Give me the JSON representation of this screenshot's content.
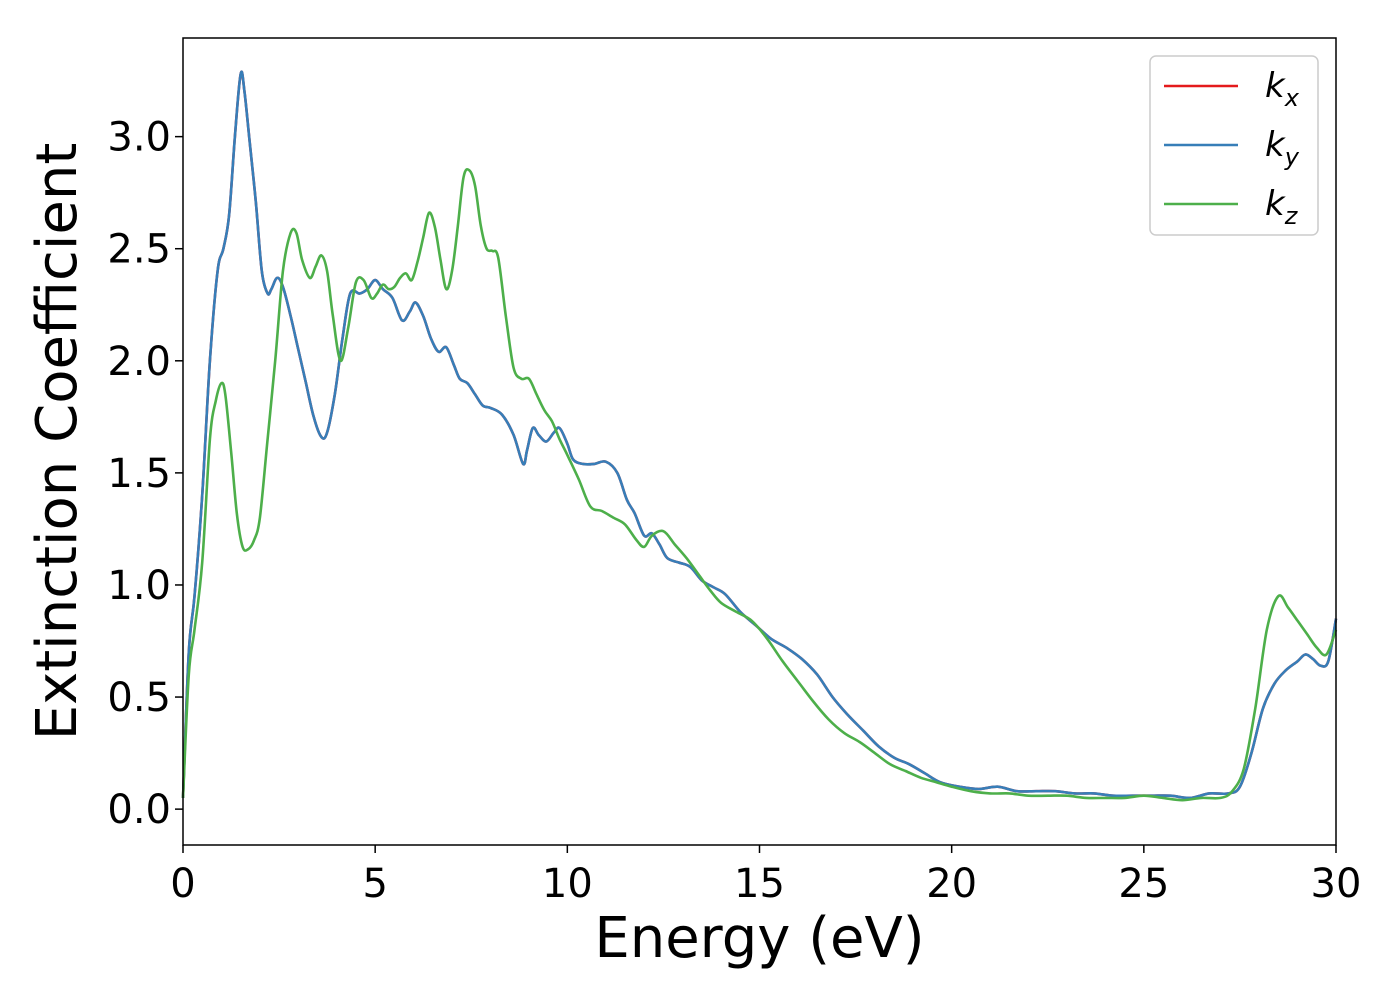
{
  "chart_data": {
    "type": "line",
    "xlabel": "Energy (eV)",
    "ylabel": "Extinction Coefficient",
    "xlim": [
      0,
      30
    ],
    "ylim": [
      -0.16,
      3.44
    ],
    "xticks": [
      0,
      5,
      10,
      15,
      20,
      25,
      30
    ],
    "yticks": [
      0.0,
      0.5,
      1.0,
      1.5,
      2.0,
      2.5,
      3.0
    ],
    "xtick_labels": [
      "0",
      "5",
      "10",
      "15",
      "20",
      "25",
      "30"
    ],
    "ytick_labels": [
      "0.0",
      "0.5",
      "1.0",
      "1.5",
      "2.0",
      "2.5",
      "3.0"
    ],
    "grid": false,
    "legend_position": "top-right",
    "series": [
      {
        "name": "k_x",
        "legend_base": "k",
        "legend_sub": "x",
        "color": "#e41a1c",
        "x": [
          0,
          0.15,
          0.3,
          0.5,
          0.7,
          0.9,
          1.05,
          1.2,
          1.35,
          1.5,
          1.6,
          1.75,
          1.9,
          2.05,
          2.2,
          2.3,
          2.45,
          2.6,
          2.8,
          3.0,
          3.2,
          3.4,
          3.6,
          3.75,
          3.95,
          4.15,
          4.35,
          4.6,
          4.8,
          5.0,
          5.2,
          5.45,
          5.7,
          5.9,
          6.05,
          6.25,
          6.45,
          6.65,
          6.85,
          7.05,
          7.2,
          7.4,
          7.6,
          7.8,
          8.0,
          8.3,
          8.6,
          8.85,
          8.95,
          9.1,
          9.25,
          9.45,
          9.65,
          9.8,
          10.0,
          10.15,
          10.4,
          10.7,
          11.0,
          11.3,
          11.55,
          11.75,
          12.0,
          12.2,
          12.4,
          12.6,
          12.9,
          13.2,
          13.5,
          13.8,
          14.1,
          14.5,
          14.9,
          15.3,
          15.7,
          16.1,
          16.5,
          16.9,
          17.3,
          17.7,
          18.1,
          18.5,
          18.9,
          19.3,
          19.7,
          20.2,
          20.7,
          21.2,
          21.7,
          22.2,
          22.7,
          23.2,
          23.7,
          24.2,
          24.7,
          25.2,
          25.7,
          26.2,
          26.7,
          27.2,
          27.5,
          27.8,
          28.1,
          28.4,
          28.7,
          29.0,
          29.2,
          29.4,
          29.6,
          29.8,
          30.0
        ],
        "values": [
          0.05,
          0.7,
          0.95,
          1.4,
          2.0,
          2.4,
          2.5,
          2.65,
          3.0,
          3.28,
          3.2,
          2.95,
          2.7,
          2.4,
          2.3,
          2.32,
          2.37,
          2.33,
          2.2,
          2.05,
          1.9,
          1.75,
          1.66,
          1.68,
          1.85,
          2.1,
          2.3,
          2.3,
          2.32,
          2.36,
          2.32,
          2.28,
          2.18,
          2.22,
          2.26,
          2.2,
          2.1,
          2.04,
          2.06,
          1.98,
          1.92,
          1.9,
          1.85,
          1.8,
          1.79,
          1.76,
          1.67,
          1.54,
          1.6,
          1.7,
          1.67,
          1.64,
          1.68,
          1.7,
          1.63,
          1.56,
          1.54,
          1.54,
          1.55,
          1.5,
          1.38,
          1.32,
          1.22,
          1.23,
          1.18,
          1.12,
          1.1,
          1.08,
          1.02,
          0.99,
          0.96,
          0.88,
          0.82,
          0.76,
          0.72,
          0.67,
          0.6,
          0.5,
          0.42,
          0.35,
          0.28,
          0.23,
          0.2,
          0.16,
          0.12,
          0.1,
          0.09,
          0.1,
          0.08,
          0.08,
          0.08,
          0.07,
          0.07,
          0.06,
          0.06,
          0.06,
          0.06,
          0.05,
          0.07,
          0.07,
          0.1,
          0.25,
          0.45,
          0.56,
          0.62,
          0.66,
          0.69,
          0.67,
          0.64,
          0.66,
          0.85
        ]
      },
      {
        "name": "k_y",
        "legend_base": "k",
        "legend_sub": "y",
        "color": "#377eb8",
        "x": [
          0,
          0.15,
          0.3,
          0.5,
          0.7,
          0.9,
          1.05,
          1.2,
          1.35,
          1.5,
          1.6,
          1.75,
          1.9,
          2.05,
          2.2,
          2.3,
          2.45,
          2.6,
          2.8,
          3.0,
          3.2,
          3.4,
          3.6,
          3.75,
          3.95,
          4.15,
          4.35,
          4.6,
          4.8,
          5.0,
          5.2,
          5.45,
          5.7,
          5.9,
          6.05,
          6.25,
          6.45,
          6.65,
          6.85,
          7.05,
          7.2,
          7.4,
          7.6,
          7.8,
          8.0,
          8.3,
          8.6,
          8.85,
          8.95,
          9.1,
          9.25,
          9.45,
          9.65,
          9.8,
          10.0,
          10.15,
          10.4,
          10.7,
          11.0,
          11.3,
          11.55,
          11.75,
          12.0,
          12.2,
          12.4,
          12.6,
          12.9,
          13.2,
          13.5,
          13.8,
          14.1,
          14.5,
          14.9,
          15.3,
          15.7,
          16.1,
          16.5,
          16.9,
          17.3,
          17.7,
          18.1,
          18.5,
          18.9,
          19.3,
          19.7,
          20.2,
          20.7,
          21.2,
          21.7,
          22.2,
          22.7,
          23.2,
          23.7,
          24.2,
          24.7,
          25.2,
          25.7,
          26.2,
          26.7,
          27.2,
          27.5,
          27.8,
          28.1,
          28.4,
          28.7,
          29.0,
          29.2,
          29.4,
          29.6,
          29.8,
          30.0
        ],
        "values": [
          0.05,
          0.7,
          0.95,
          1.4,
          2.0,
          2.4,
          2.5,
          2.65,
          3.0,
          3.28,
          3.2,
          2.95,
          2.7,
          2.4,
          2.3,
          2.32,
          2.37,
          2.33,
          2.2,
          2.05,
          1.9,
          1.75,
          1.66,
          1.68,
          1.85,
          2.1,
          2.3,
          2.3,
          2.32,
          2.36,
          2.32,
          2.28,
          2.18,
          2.22,
          2.26,
          2.2,
          2.1,
          2.04,
          2.06,
          1.98,
          1.92,
          1.9,
          1.85,
          1.8,
          1.79,
          1.76,
          1.67,
          1.54,
          1.6,
          1.7,
          1.67,
          1.64,
          1.68,
          1.7,
          1.63,
          1.56,
          1.54,
          1.54,
          1.55,
          1.5,
          1.38,
          1.32,
          1.22,
          1.23,
          1.18,
          1.12,
          1.1,
          1.08,
          1.02,
          0.99,
          0.96,
          0.88,
          0.82,
          0.76,
          0.72,
          0.67,
          0.6,
          0.5,
          0.42,
          0.35,
          0.28,
          0.23,
          0.2,
          0.16,
          0.12,
          0.1,
          0.09,
          0.1,
          0.08,
          0.08,
          0.08,
          0.07,
          0.07,
          0.06,
          0.06,
          0.06,
          0.06,
          0.05,
          0.07,
          0.07,
          0.1,
          0.25,
          0.45,
          0.56,
          0.62,
          0.66,
          0.69,
          0.67,
          0.64,
          0.66,
          0.85
        ]
      },
      {
        "name": "k_z",
        "legend_base": "k",
        "legend_sub": "z",
        "color": "#4daf4a",
        "x": [
          0,
          0.15,
          0.3,
          0.5,
          0.7,
          0.85,
          1.0,
          1.1,
          1.25,
          1.4,
          1.55,
          1.7,
          1.85,
          2.0,
          2.2,
          2.4,
          2.6,
          2.8,
          2.95,
          3.1,
          3.3,
          3.45,
          3.6,
          3.75,
          3.9,
          4.1,
          4.3,
          4.5,
          4.7,
          4.9,
          5.05,
          5.2,
          5.35,
          5.5,
          5.65,
          5.8,
          5.95,
          6.1,
          6.25,
          6.4,
          6.55,
          6.7,
          6.85,
          7.0,
          7.15,
          7.3,
          7.45,
          7.6,
          7.75,
          7.9,
          8.05,
          8.2,
          8.4,
          8.6,
          8.8,
          9.0,
          9.2,
          9.4,
          9.6,
          9.8,
          10.0,
          10.3,
          10.6,
          10.9,
          11.2,
          11.5,
          11.8,
          12.0,
          12.2,
          12.5,
          12.8,
          13.1,
          13.4,
          13.7,
          14.0,
          14.4,
          14.8,
          15.2,
          15.6,
          16.0,
          16.4,
          16.8,
          17.2,
          17.6,
          18.0,
          18.4,
          18.8,
          19.2,
          19.6,
          20.0,
          20.5,
          21.0,
          21.5,
          22.0,
          22.5,
          23.0,
          23.5,
          24.0,
          24.5,
          25.0,
          25.5,
          26.0,
          26.5,
          27.0,
          27.3,
          27.6,
          27.9,
          28.2,
          28.5,
          28.75,
          29.0,
          29.25,
          29.5,
          29.75,
          30.0
        ],
        "values": [
          0.05,
          0.6,
          0.8,
          1.1,
          1.65,
          1.82,
          1.9,
          1.85,
          1.6,
          1.32,
          1.17,
          1.16,
          1.2,
          1.3,
          1.65,
          2.0,
          2.4,
          2.57,
          2.57,
          2.45,
          2.37,
          2.42,
          2.47,
          2.4,
          2.2,
          2.0,
          2.15,
          2.35,
          2.36,
          2.28,
          2.3,
          2.34,
          2.32,
          2.33,
          2.37,
          2.39,
          2.36,
          2.44,
          2.55,
          2.66,
          2.6,
          2.45,
          2.32,
          2.4,
          2.6,
          2.82,
          2.85,
          2.78,
          2.6,
          2.5,
          2.49,
          2.46,
          2.2,
          1.97,
          1.92,
          1.92,
          1.85,
          1.78,
          1.73,
          1.65,
          1.58,
          1.47,
          1.35,
          1.33,
          1.3,
          1.27,
          1.2,
          1.17,
          1.22,
          1.24,
          1.18,
          1.12,
          1.05,
          0.98,
          0.92,
          0.88,
          0.84,
          0.76,
          0.66,
          0.57,
          0.48,
          0.4,
          0.34,
          0.3,
          0.25,
          0.2,
          0.17,
          0.14,
          0.12,
          0.1,
          0.08,
          0.07,
          0.07,
          0.06,
          0.06,
          0.06,
          0.05,
          0.05,
          0.05,
          0.06,
          0.05,
          0.04,
          0.05,
          0.05,
          0.08,
          0.18,
          0.45,
          0.8,
          0.95,
          0.9,
          0.84,
          0.78,
          0.72,
          0.69,
          0.8
        ]
      }
    ]
  }
}
